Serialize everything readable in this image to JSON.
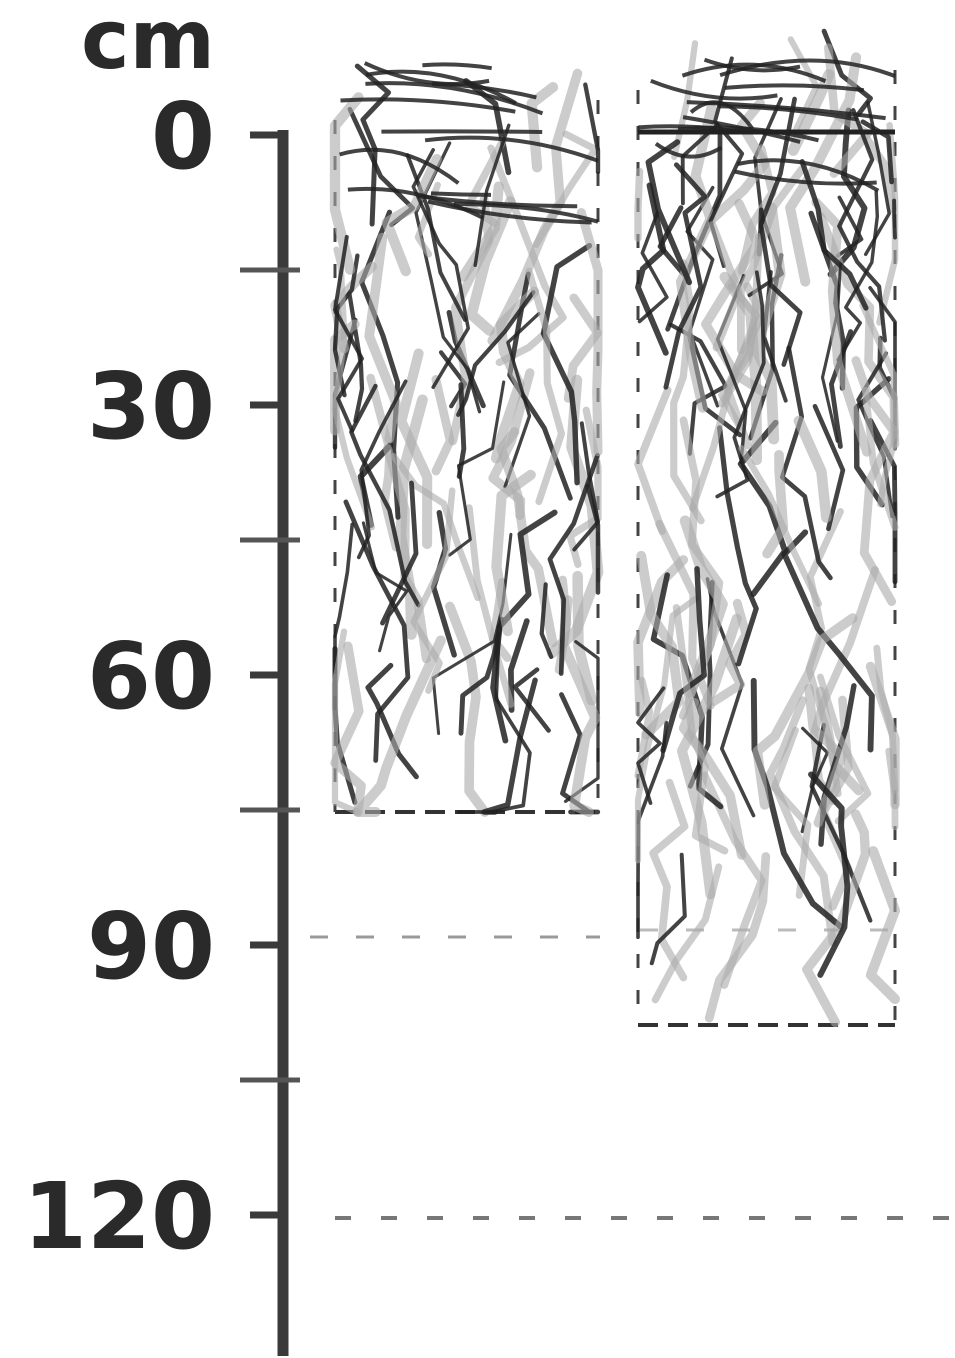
{
  "scale": {
    "unit": "cm",
    "ticks": [
      0,
      30,
      60,
      90,
      120
    ]
  }
}
